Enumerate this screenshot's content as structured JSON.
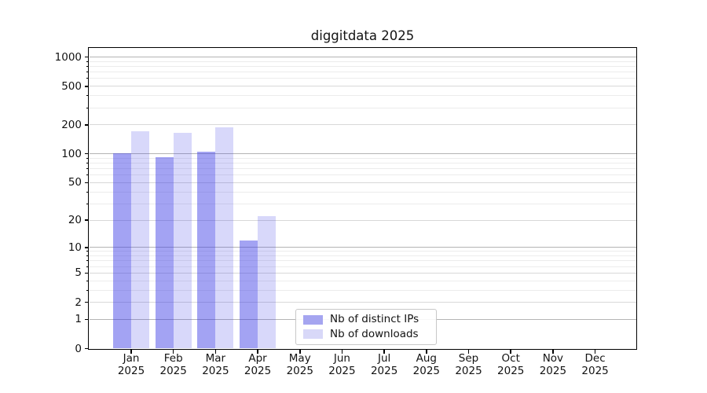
{
  "chart_data": {
    "type": "bar",
    "title": "diggitdata 2025",
    "categories": [
      "Jan",
      "Feb",
      "Mar",
      "Apr",
      "May",
      "Jun",
      "Jul",
      "Aug",
      "Sep",
      "Oct",
      "Nov",
      "Dec"
    ],
    "x_year_label": "2025",
    "series": [
      {
        "name": "Nb of distinct IPs",
        "legend_color": "#a5a5f0",
        "fill": "rgba(60,60,230,0.47)",
        "values": [
          102,
          93,
          105,
          12,
          null,
          null,
          null,
          null,
          null,
          null,
          null,
          null
        ]
      },
      {
        "name": "Nb of downloads",
        "legend_color": "#d8d8f8",
        "fill": "rgba(60,60,230,0.20)",
        "values": [
          171,
          166,
          190,
          22,
          null,
          null,
          null,
          null,
          null,
          null,
          null,
          null
        ]
      }
    ],
    "y_axis": {
      "scale": "log1p",
      "tick_values": [
        0,
        1,
        2,
        5,
        10,
        20,
        50,
        100,
        200,
        500,
        1000
      ],
      "max": 1230
    },
    "grid": {
      "major_lines": [
        1,
        10,
        100,
        1000
      ],
      "major_color": "#b4b4b4",
      "labeled_minor_color": "#d8d8d8",
      "minor_color": "#ececec"
    },
    "legend": {
      "position": "lower-center"
    }
  }
}
